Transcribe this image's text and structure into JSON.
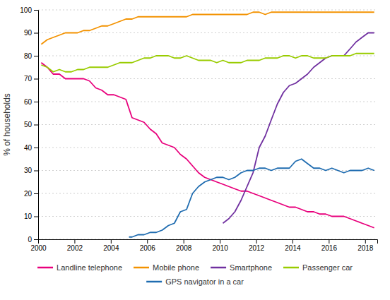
{
  "chart_data": {
    "type": "line",
    "ylabel": "% of households",
    "xlim": [
      2000,
      2018.67
    ],
    "ylim": [
      0,
      100
    ],
    "xticks": [
      2000,
      2002,
      2004,
      2006,
      2008,
      2010,
      2012,
      2014,
      2016,
      2018
    ],
    "yticks": [
      0,
      10,
      20,
      30,
      40,
      50,
      60,
      70,
      80,
      90,
      100
    ],
    "grid": true,
    "legend": "bottom",
    "series": [
      {
        "name": "Landline telephone",
        "color": "#e8007c",
        "x": [
          2000.17,
          2000.5,
          2000.83,
          2001.17,
          2001.5,
          2001.83,
          2002.17,
          2002.5,
          2002.83,
          2003.17,
          2003.5,
          2003.83,
          2004.17,
          2004.5,
          2004.83,
          2005.17,
          2005.5,
          2005.83,
          2006.17,
          2006.5,
          2006.83,
          2007.17,
          2007.5,
          2007.83,
          2008.17,
          2008.5,
          2008.83,
          2009.17,
          2009.5,
          2009.83,
          2010.17,
          2010.5,
          2010.83,
          2011.17,
          2011.5,
          2011.83,
          2012.17,
          2012.5,
          2012.83,
          2013.17,
          2013.5,
          2013.83,
          2014.17,
          2014.5,
          2014.83,
          2015.17,
          2015.5,
          2015.83,
          2016.17,
          2016.5,
          2016.83,
          2017.17,
          2017.5,
          2017.83,
          2018.17,
          2018.5
        ],
        "values": [
          77,
          75,
          72,
          72,
          70,
          70,
          70,
          70,
          69,
          66,
          65,
          63,
          63,
          62,
          61,
          53,
          52,
          51,
          48,
          46,
          42,
          41,
          40,
          37,
          35,
          32,
          29,
          27,
          26,
          25,
          24,
          23,
          22,
          21,
          21,
          20,
          19,
          18,
          17,
          16,
          15,
          14,
          14,
          13,
          12,
          12,
          11,
          11,
          10,
          10,
          10,
          9,
          8,
          7,
          6,
          5
        ]
      },
      {
        "name": "Mobile phone",
        "color": "#f39200",
        "x": [
          2000.17,
          2000.5,
          2000.83,
          2001.17,
          2001.5,
          2001.83,
          2002.17,
          2002.5,
          2002.83,
          2003.17,
          2003.5,
          2003.83,
          2004.17,
          2004.5,
          2004.83,
          2005.17,
          2005.5,
          2005.83,
          2006.17,
          2006.5,
          2006.83,
          2007.17,
          2007.5,
          2007.83,
          2008.17,
          2008.5,
          2008.83,
          2009.17,
          2009.5,
          2009.83,
          2010.17,
          2010.5,
          2010.83,
          2011.17,
          2011.5,
          2011.83,
          2012.17,
          2012.5,
          2012.83,
          2013.17,
          2013.5,
          2013.83,
          2014.17,
          2014.5,
          2014.83,
          2015.17,
          2015.5,
          2015.83,
          2016.17,
          2016.5,
          2016.83,
          2017.17,
          2017.5,
          2017.83,
          2018.17,
          2018.5
        ],
        "values": [
          85,
          87,
          88,
          89,
          90,
          90,
          90,
          91,
          91,
          92,
          93,
          93,
          94,
          95,
          96,
          96,
          97,
          97,
          97,
          97,
          97,
          97,
          97,
          97,
          97,
          98,
          98,
          98,
          98,
          98,
          98,
          98,
          98,
          98,
          98,
          99,
          99,
          98,
          99,
          99,
          99,
          99,
          99,
          99,
          99,
          99,
          99,
          99,
          99,
          99,
          99,
          99,
          99,
          99,
          99,
          99
        ]
      },
      {
        "name": "Smartphone",
        "color": "#7030a0",
        "x": [
          2010.17,
          2010.5,
          2010.83,
          2011.17,
          2011.5,
          2011.83,
          2012.17,
          2012.5,
          2012.83,
          2013.17,
          2013.5,
          2013.83,
          2014.17,
          2014.5,
          2014.83,
          2015.17,
          2015.5,
          2015.83,
          2016.17,
          2016.5,
          2016.83,
          2017.17,
          2017.5,
          2017.83,
          2018.17,
          2018.5
        ],
        "values": [
          7,
          9,
          12,
          17,
          23,
          29,
          40,
          45,
          52,
          59,
          64,
          67,
          68,
          70,
          72,
          75,
          77,
          79,
          80,
          80,
          80,
          83,
          86,
          88,
          90,
          90
        ]
      },
      {
        "name": "Passenger car",
        "color": "#99cc00",
        "x": [
          2000.17,
          2000.5,
          2000.83,
          2001.17,
          2001.5,
          2001.83,
          2002.17,
          2002.5,
          2002.83,
          2003.17,
          2003.5,
          2003.83,
          2004.17,
          2004.5,
          2004.83,
          2005.17,
          2005.5,
          2005.83,
          2006.17,
          2006.5,
          2006.83,
          2007.17,
          2007.5,
          2007.83,
          2008.17,
          2008.5,
          2008.83,
          2009.17,
          2009.5,
          2009.83,
          2010.17,
          2010.5,
          2010.83,
          2011.17,
          2011.5,
          2011.83,
          2012.17,
          2012.5,
          2012.83,
          2013.17,
          2013.5,
          2013.83,
          2014.17,
          2014.5,
          2014.83,
          2015.17,
          2015.5,
          2015.83,
          2016.17,
          2016.5,
          2016.83,
          2017.17,
          2017.5,
          2017.83,
          2018.17,
          2018.5
        ],
        "values": [
          76,
          75,
          73,
          74,
          73,
          73,
          74,
          74,
          75,
          75,
          75,
          75,
          76,
          77,
          77,
          77,
          78,
          79,
          79,
          80,
          80,
          80,
          79,
          79,
          80,
          79,
          78,
          78,
          78,
          77,
          78,
          77,
          77,
          77,
          78,
          78,
          78,
          79,
          79,
          79,
          80,
          80,
          79,
          80,
          80,
          79,
          79,
          79,
          80,
          80,
          80,
          80,
          81,
          81,
          81,
          81
        ]
      },
      {
        "name": "GPS navigator in a car",
        "color": "#1f6cb0",
        "x": [
          2005.0,
          2005.17,
          2005.5,
          2005.83,
          2006.17,
          2006.5,
          2006.83,
          2007.17,
          2007.5,
          2007.83,
          2008.17,
          2008.5,
          2008.83,
          2009.17,
          2009.5,
          2009.83,
          2010.17,
          2010.5,
          2010.83,
          2011.17,
          2011.5,
          2011.83,
          2012.17,
          2012.5,
          2012.83,
          2013.17,
          2013.5,
          2013.83,
          2014.17,
          2014.5,
          2014.83,
          2015.17,
          2015.5,
          2015.83,
          2016.17,
          2016.5,
          2016.83,
          2017.17,
          2017.5,
          2017.83,
          2018.17,
          2018.5
        ],
        "values": [
          1,
          1,
          2,
          2,
          3,
          3,
          4,
          6,
          7,
          12,
          13,
          20,
          23,
          25,
          26,
          27,
          27,
          26,
          27,
          29,
          30,
          30,
          31,
          31,
          30,
          31,
          31,
          31,
          34,
          35,
          33,
          31,
          31,
          30,
          31,
          30,
          29,
          30,
          30,
          30,
          31,
          30
        ]
      }
    ]
  }
}
